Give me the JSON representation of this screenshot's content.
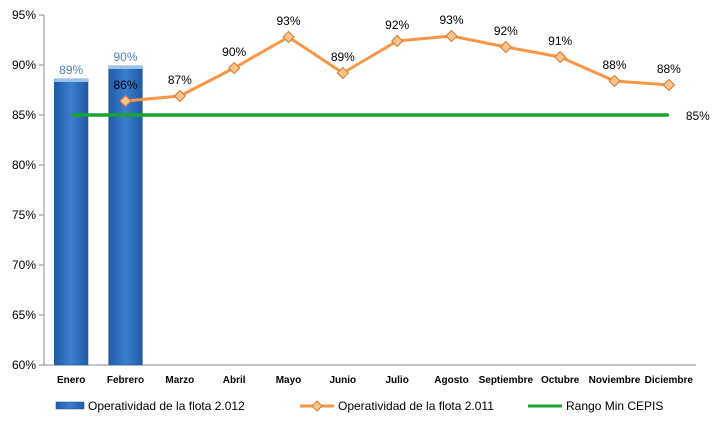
{
  "chart_data": {
    "type": "bar",
    "categories": [
      "Enero",
      "Febrero",
      "Marzo",
      "Abril",
      "Mayo",
      "Junio",
      "Julio",
      "Agosto",
      "Septiembre",
      "Octubre",
      "Noviembre",
      "Diciembre"
    ],
    "series": [
      {
        "name": "Operatividad de la flota 2.012",
        "type": "bar",
        "color": "#2e6db4",
        "values": [
          88.6,
          89.9,
          null,
          null,
          null,
          null,
          null,
          null,
          null,
          null,
          null,
          null
        ],
        "labels": [
          "89%",
          "90%",
          "",
          "",
          "",
          "",
          "",
          "",
          "",
          "",
          "",
          ""
        ]
      },
      {
        "name": "Operatividad de la flota 2.011",
        "type": "line",
        "color": "#f79646",
        "marker": "diamond",
        "values": [
          null,
          86.4,
          86.9,
          89.7,
          92.8,
          89.2,
          92.4,
          92.9,
          91.8,
          90.8,
          88.4,
          88.0
        ],
        "labels": [
          "",
          "86%",
          "87%",
          "90%",
          "93%",
          "89%",
          "92%",
          "93%",
          "92%",
          "91%",
          "88%",
          "88%"
        ]
      },
      {
        "name": "Rango Min CEPIS",
        "type": "line",
        "color": "#1aa32f",
        "values": [
          85,
          85,
          85,
          85,
          85,
          85,
          85,
          85,
          85,
          85,
          85,
          85
        ],
        "labels": [
          "",
          "",
          "",
          "",
          "",
          "",
          "",
          "",
          "",
          "",
          "",
          "85%"
        ]
      }
    ],
    "ylim": [
      60,
      95
    ],
    "yticks": [
      60,
      65,
      70,
      75,
      80,
      85,
      90,
      95
    ],
    "ytick_labels": [
      "60%",
      "65%",
      "70%",
      "75%",
      "80%",
      "85%",
      "90%",
      "95%"
    ],
    "title": "",
    "xlabel": "",
    "ylabel": "",
    "grid": false,
    "legend_position": "bottom"
  }
}
